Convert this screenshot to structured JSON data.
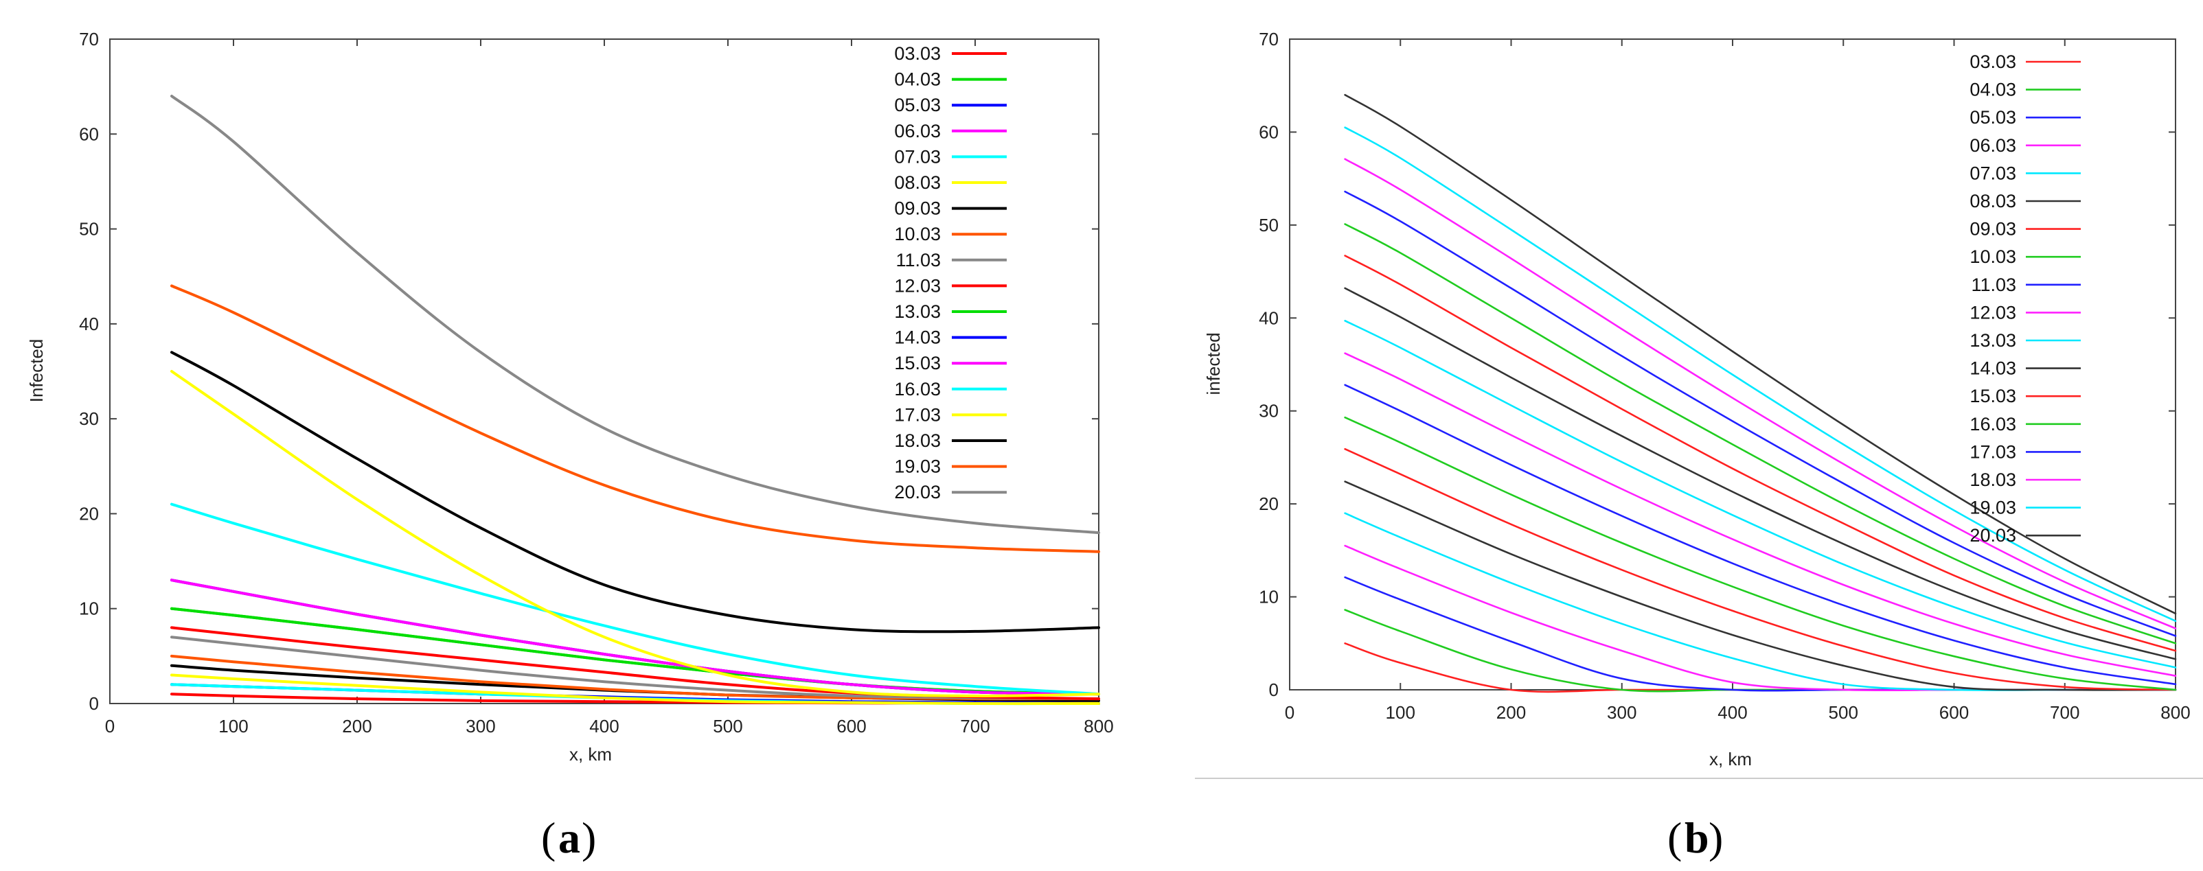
{
  "chart_data": [
    {
      "type": "line",
      "panel": "a",
      "caption": "a",
      "xlabel": "x, km",
      "ylabel": "Infected",
      "xlim": [
        0,
        800
      ],
      "ylim": [
        0,
        70
      ],
      "xticks": [
        0,
        100,
        200,
        300,
        400,
        500,
        600,
        700,
        800
      ],
      "yticks": [
        0,
        10,
        20,
        30,
        40,
        50,
        60,
        70
      ],
      "legend_position": "top-right",
      "x": [
        50,
        100,
        200,
        300,
        400,
        500,
        600,
        700,
        800
      ],
      "series": [
        {
          "name": "03.03",
          "color": "#ff0000",
          "values": [
            1,
            0.8,
            0.5,
            0.3,
            0.2,
            0.1,
            0.05,
            0.05,
            0
          ]
        },
        {
          "name": "04.03",
          "color": "#00dd00",
          "values": [
            10,
            9.3,
            7.8,
            6.2,
            4.6,
            3.2,
            2,
            1.3,
            1
          ]
        },
        {
          "name": "05.03",
          "color": "#0000ff",
          "values": [
            2,
            1.8,
            1.4,
            1,
            0.7,
            0.4,
            0.2,
            0.1,
            0
          ]
        },
        {
          "name": "06.03",
          "color": "#ff00ff",
          "values": [
            13,
            11.8,
            9.4,
            7.2,
            5.2,
            3.4,
            2,
            1.2,
            1
          ]
        },
        {
          "name": "07.03",
          "color": "#00ffff",
          "values": [
            2,
            1.8,
            1.4,
            1,
            0.6,
            0.3,
            0.1,
            0,
            0
          ]
        },
        {
          "name": "08.03",
          "color": "#ffff00",
          "values": [
            3,
            2.6,
            1.9,
            1.2,
            0.6,
            0.2,
            0.1,
            0,
            0
          ]
        },
        {
          "name": "09.03",
          "color": "#000000",
          "values": [
            4,
            3.5,
            2.7,
            2,
            1.4,
            0.9,
            0.6,
            0.4,
            0.3
          ]
        },
        {
          "name": "10.03",
          "color": "#ff5500",
          "values": [
            5,
            4.4,
            3.3,
            2.3,
            1.5,
            0.9,
            0.6,
            0.5,
            0.5
          ]
        },
        {
          "name": "11.03",
          "color": "#888888",
          "values": [
            7,
            6.3,
            4.9,
            3.5,
            2.3,
            1.4,
            0.8,
            0.6,
            0.5
          ]
        },
        {
          "name": "12.03",
          "color": "#ff0000",
          "values": [
            8,
            7.3,
            5.9,
            4.6,
            3.3,
            2,
            1.1,
            0.7,
            0.5
          ]
        },
        {
          "name": "13.03",
          "color": "#00dd00",
          "values": [
            10,
            9.3,
            7.8,
            6.2,
            4.6,
            3.2,
            2,
            1.3,
            1
          ]
        },
        {
          "name": "14.03",
          "color": "#0000ff",
          "values": [
            13,
            11.8,
            9.4,
            7.2,
            5.2,
            3.4,
            2,
            1.2,
            1
          ]
        },
        {
          "name": "15.03",
          "color": "#ff00ff",
          "values": [
            13,
            11.8,
            9.4,
            7.2,
            5.2,
            3.4,
            2,
            1.2,
            1
          ]
        },
        {
          "name": "16.03",
          "color": "#00ffff",
          "values": [
            21,
            19,
            15.2,
            11.6,
            8.2,
            5.2,
            3,
            1.8,
            1
          ]
        },
        {
          "name": "17.03",
          "color": "#ffff00",
          "values": [
            35,
            30.5,
            21.5,
            13.5,
            7,
            3,
            1.2,
            0.8,
            1
          ]
        },
        {
          "name": "18.03",
          "color": "#000000",
          "values": [
            37,
            33.5,
            25.8,
            18.5,
            12.5,
            9.3,
            7.8,
            7.6,
            8
          ]
        },
        {
          "name": "19.03",
          "color": "#ff5500",
          "values": [
            44,
            41.2,
            34.8,
            28.5,
            23,
            19.2,
            17.2,
            16.4,
            16
          ]
        },
        {
          "name": "20.03",
          "color": "#888888",
          "values": [
            64,
            59.2,
            47.5,
            37,
            29,
            24,
            20.8,
            19,
            18
          ]
        }
      ]
    },
    {
      "type": "line",
      "panel": "b",
      "caption": "b",
      "xlabel": "x, km",
      "ylabel": "infected",
      "xlim": [
        0,
        800
      ],
      "ylim": [
        0,
        70
      ],
      "xticks": [
        0,
        100,
        200,
        300,
        400,
        500,
        600,
        700,
        800
      ],
      "yticks": [
        0,
        10,
        20,
        30,
        40,
        50,
        60,
        70
      ],
      "legend_position": "top-right",
      "x": [
        50,
        100,
        200,
        300,
        400,
        500,
        600,
        700,
        800
      ],
      "series": [
        {
          "name": "03.03",
          "color": "#ff2020",
          "values": [
            5,
            2.9,
            0,
            0,
            0,
            0,
            0,
            0,
            0
          ]
        },
        {
          "name": "04.03",
          "color": "#20cc20",
          "values": [
            8.6,
            6.3,
            2.2,
            0,
            0,
            0,
            0,
            0,
            0
          ]
        },
        {
          "name": "05.03",
          "color": "#2020ff",
          "values": [
            12.1,
            9.7,
            5.2,
            1.2,
            0,
            0,
            0,
            0,
            0
          ]
        },
        {
          "name": "06.03",
          "color": "#ff20ff",
          "values": [
            15.5,
            13,
            8.3,
            4.2,
            0.8,
            0,
            0,
            0,
            0
          ]
        },
        {
          "name": "07.03",
          "color": "#00e8ff",
          "values": [
            19,
            16.4,
            11.5,
            7.1,
            3.4,
            0.6,
            0,
            0,
            0
          ]
        },
        {
          "name": "08.03",
          "color": "#333333",
          "values": [
            22.4,
            19.8,
            14.6,
            10,
            5.9,
            2.6,
            0.3,
            0,
            0
          ]
        },
        {
          "name": "09.03",
          "color": "#ff2020",
          "values": [
            25.9,
            23.2,
            17.8,
            12.9,
            8.5,
            4.7,
            1.8,
            0.3,
            0
          ]
        },
        {
          "name": "10.03",
          "color": "#20cc20",
          "values": [
            29.3,
            26.6,
            21,
            15.8,
            11.1,
            6.9,
            3.6,
            1.2,
            0
          ]
        },
        {
          "name": "11.03",
          "color": "#2020ff",
          "values": [
            32.8,
            30,
            24.2,
            18.7,
            13.6,
            9.1,
            5.3,
            2.4,
            0.6
          ]
        },
        {
          "name": "12.03",
          "color": "#ff20ff",
          "values": [
            36.2,
            33.4,
            27.4,
            21.6,
            16.2,
            11.3,
            7.1,
            3.8,
            1.5
          ]
        },
        {
          "name": "13.03",
          "color": "#00e8ff",
          "values": [
            39.7,
            36.8,
            30.6,
            24.5,
            18.8,
            13.5,
            8.9,
            5.1,
            2.4
          ]
        },
        {
          "name": "14.03",
          "color": "#333333",
          "values": [
            43.2,
            40.1,
            33.6,
            27.3,
            21.3,
            15.7,
            10.6,
            6.4,
            3.3
          ]
        },
        {
          "name": "15.03",
          "color": "#ff2020",
          "values": [
            46.7,
            43.6,
            36.8,
            30.2,
            23.8,
            17.9,
            12.3,
            7.7,
            4.2
          ]
        },
        {
          "name": "16.03",
          "color": "#20cc20",
          "values": [
            50.1,
            47,
            40,
            33,
            26.4,
            20,
            14.1,
            9,
            5
          ]
        },
        {
          "name": "17.03",
          "color": "#2020ff",
          "values": [
            53.6,
            50.4,
            43.2,
            35.9,
            28.9,
            22.2,
            15.8,
            10.3,
            5.8
          ]
        },
        {
          "name": "18.03",
          "color": "#ff20ff",
          "values": [
            57.1,
            53.8,
            46.4,
            38.8,
            31.4,
            24.3,
            17.6,
            11.6,
            6.6
          ]
        },
        {
          "name": "19.03",
          "color": "#00e8ff",
          "values": [
            60.5,
            57.2,
            49.5,
            41.7,
            33.9,
            26.4,
            19.3,
            12.9,
            7.4
          ]
        },
        {
          "name": "20.03",
          "color": "#333333",
          "values": [
            64,
            60.6,
            52.7,
            44.5,
            36.4,
            28.5,
            21,
            14.1,
            8.2
          ]
        }
      ]
    }
  ]
}
